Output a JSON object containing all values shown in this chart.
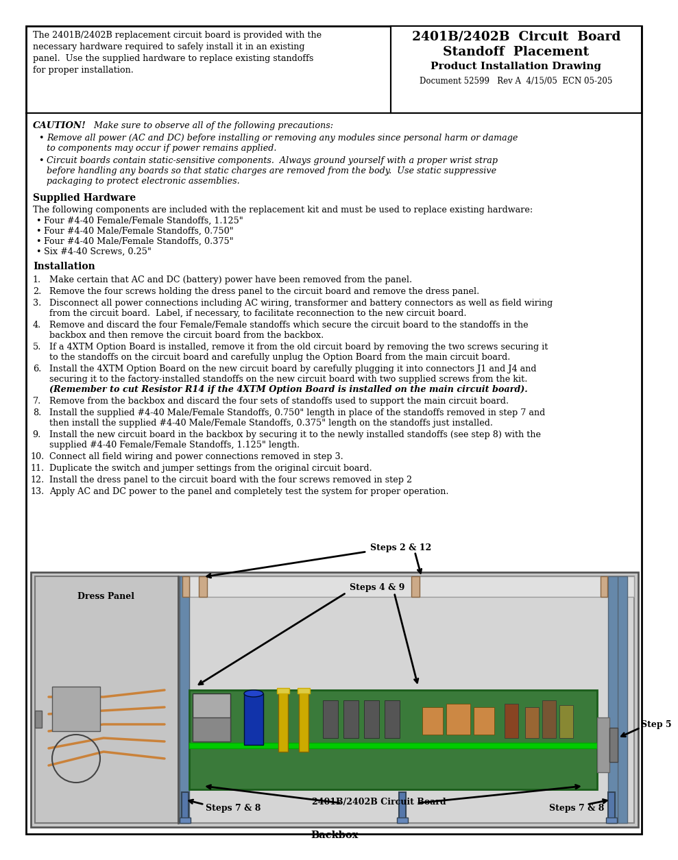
{
  "page_bg": "#ffffff",
  "title_line1": "2401B/2402B  Circuit  Board",
  "title_line2": "Standoff  Placement",
  "title_line3": "Product Installation Drawing",
  "title_line4": "Document 52599   Rev A  4/15/05  ECN 05-205",
  "intro_text": "The 2401B/2402B replacement circuit board is provided with the\nnecessary hardware required to safely install it in an existing\npanel.  Use the supplied hardware to replace existing standoffs\nfor proper installation.",
  "caution_bold": "CAUTION!",
  "caution_text": "   Make sure to observe all of the following precautions:",
  "caution_bullets": [
    "Remove all power (AC and DC) before installing or removing any modules since personal harm or damage\n        to components may occur if power remains applied.",
    "Circuit boards contain static-sensitive components.  Always ground yourself with a proper wrist strap\n        before handling any boards so that static charges are removed from the body.  Use static suppressive\n        packaging to protect electronic assemblies."
  ],
  "section1_title": "Supplied Hardware",
  "section1_intro": "The following components are included with the replacement kit and must be used to replace existing hardware:",
  "section1_bullets": [
    "Four #4-40 Female/Female Standoffs, 1.125\"",
    "Four #4-40 Male/Female Standoffs, 0.750\"",
    "Four #4-40 Male/Female Standoffs, 0.375\"",
    "Six #4-40 Screws, 0.25\""
  ],
  "section2_title": "Installation",
  "install_steps": [
    [
      "1.",
      "Make certain that AC and DC (battery) power have been removed from the panel."
    ],
    [
      "2.",
      "Remove the four screws holding the dress panel to the circuit board and remove the dress panel."
    ],
    [
      "3.",
      "Disconnect all power connections including AC wiring, transformer and battery connectors as well as field wiring",
      "from the circuit board.  Label, if necessary, to facilitate reconnection to the new circuit board."
    ],
    [
      "4.",
      "Remove and discard the four Female/Female standoffs which secure the circuit board to the standoffs in the",
      "backbox and then remove the circuit board from the backbox."
    ],
    [
      "5.",
      "If a 4XTM Option Board is installed, remove it from the old circuit board by removing the two screws securing it",
      "to the standoffs on the circuit board and carefully unplug the Option Board from the main circuit board."
    ],
    [
      "6.",
      "Install the 4XTM Option Board on the new circuit board by carefully plugging it into connectors J1 and J4 and",
      "securing it to the factory-installed standoffs on the new circuit board with two supplied screws from the kit.",
      "italic:(Remember to cut Resistor R14 if the 4XTM Option Board is installed on the main circuit board)."
    ],
    [
      "7.",
      "Remove from the backbox and discard the four sets of standoffs used to support the main circuit board."
    ],
    [
      "8.",
      "Install the supplied #4-40 Male/Female Standoffs, 0.750\" length in place of the standoffs removed in step 7 and",
      "then install the supplied #4-40 Male/Female Standoffs, 0.375\" length on the standoffs just installed."
    ],
    [
      "9.",
      "Install the new circuit board in the backbox by securing it to the newly installed standoffs (see step 8) with the",
      "supplied #4-40 Female/Female Standoffs, 1.125\" length."
    ],
    [
      "10.",
      "Connect all field wiring and power connections removed in step 3."
    ],
    [
      "11.",
      "Duplicate the switch and jumper settings from the original circuit board."
    ],
    [
      "12.",
      "Install the dress panel to the circuit board with the four screws removed in step 2"
    ],
    [
      "13.",
      "Apply AC and DC power to the panel and completely test the system for proper operation."
    ]
  ],
  "diagram_labels": {
    "steps_2_12": "Steps 2 & 12",
    "steps_4_9": "Steps 4 & 9",
    "dress_panel": "Dress Panel",
    "step_5": "Step 5",
    "circuit_board": "2401B/2402B Circuit Board",
    "steps_7_8_left": "Steps 7 & 8",
    "steps_7_8_right": "Steps 7 & 8",
    "backbox": "Backbox"
  }
}
